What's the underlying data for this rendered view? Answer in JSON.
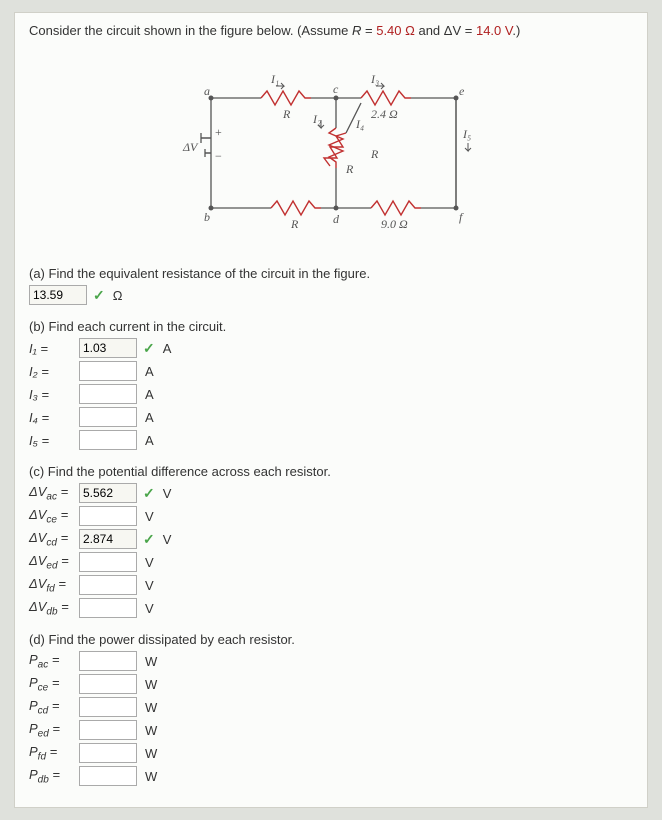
{
  "question": {
    "intro": "Consider the circuit shown in the figure below. (Assume ",
    "R_label": "R",
    "R_value": "5.40 Ω",
    "and": " and ",
    "dV_label": "ΔV",
    "dV_value": "14.0 V",
    "closing": ".)"
  },
  "circuit": {
    "labels": {
      "a": "a",
      "b": "b",
      "c": "c",
      "d": "d",
      "e": "e",
      "f": "f",
      "I1": "I₁",
      "I2": "I₂",
      "I3": "I₃",
      "I4": "I₄",
      "I5": "I₅",
      "R": "R",
      "R24": "2.4 Ω",
      "R90": "9.0 Ω",
      "dV": "ΔV"
    },
    "colors": {
      "wire": "#555",
      "resistor": "#c13030",
      "text": "#555"
    }
  },
  "parts": {
    "a": {
      "label": "(a) Find the equivalent resistance of the circuit in the figure.",
      "value": "13.59",
      "unit": "Ω",
      "correct": true
    },
    "b": {
      "label": "(b) Find each current in the circuit.",
      "rows": [
        {
          "name": "I₁",
          "value": "1.03",
          "unit": "A",
          "correct": true
        },
        {
          "name": "I₂",
          "value": "",
          "unit": "A"
        },
        {
          "name": "I₃",
          "value": "",
          "unit": "A"
        },
        {
          "name": "I₄",
          "value": "",
          "unit": "A"
        },
        {
          "name": "I₅",
          "value": "",
          "unit": "A"
        }
      ]
    },
    "c": {
      "label": "(c) Find the potential difference across each resistor.",
      "rows": [
        {
          "name": "ΔVₐc",
          "value": "5.562",
          "unit": "V",
          "correct": true
        },
        {
          "name": "ΔVce",
          "value": "",
          "unit": "V"
        },
        {
          "name": "ΔVcd",
          "value": "2.874",
          "unit": "V",
          "correct": true
        },
        {
          "name": "ΔVed",
          "value": "",
          "unit": "V"
        },
        {
          "name": "ΔVfd",
          "value": "",
          "unit": "V"
        },
        {
          "name": "ΔVdb",
          "value": "",
          "unit": "V"
        }
      ],
      "subs": [
        "ac",
        "ce",
        "cd",
        "ed",
        "fd",
        "db"
      ]
    },
    "d": {
      "label": "(d) Find the power dissipated by each resistor.",
      "rows": [
        {
          "name": "Pac",
          "value": "",
          "unit": "W"
        },
        {
          "name": "Pce",
          "value": "",
          "unit": "W"
        },
        {
          "name": "Pcd",
          "value": "",
          "unit": "W"
        },
        {
          "name": "Ped",
          "value": "",
          "unit": "W"
        },
        {
          "name": "Pfd",
          "value": "",
          "unit": "W"
        },
        {
          "name": "Pdb",
          "value": "",
          "unit": "W"
        }
      ],
      "subs": [
        "ac",
        "ce",
        "cd",
        "ed",
        "fd",
        "db"
      ]
    }
  }
}
